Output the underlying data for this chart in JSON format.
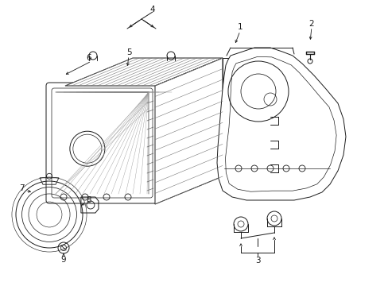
{
  "bg_color": "#ffffff",
  "lc": "#1a1a1a",
  "lw": 0.7,
  "fig_w": 4.89,
  "fig_h": 3.6,
  "dpi": 100,
  "fs": 7,
  "xlim": [
    0,
    489
  ],
  "ylim": [
    0,
    360
  ]
}
